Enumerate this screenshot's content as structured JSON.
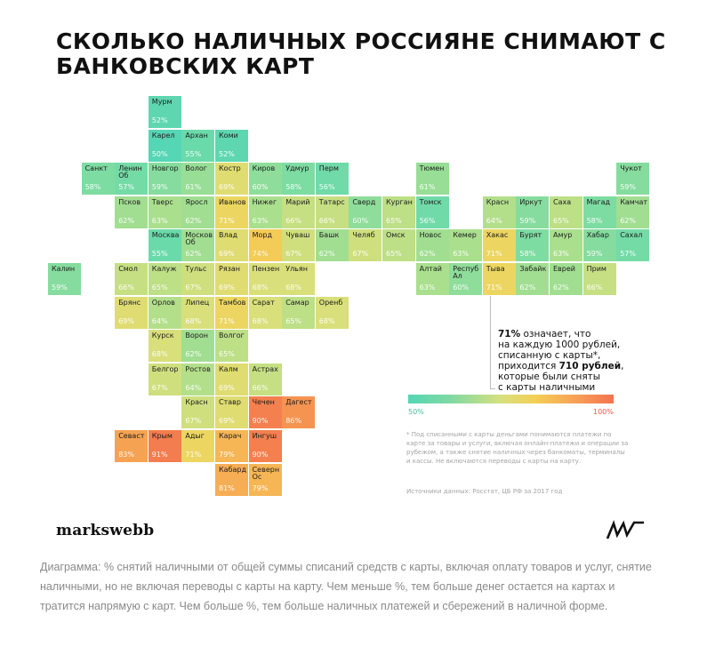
{
  "title": "СКОЛЬКО НАЛИЧНЫХ РОССИЯНЕ СНИМАЮТ С БАНКОВСКИХ КАРТ",
  "colors": {
    "scale_low": "#55d6b4",
    "scale_mid": "#e9d964",
    "scale_high": "#f4734f"
  },
  "chart_data": {
    "type": "heatmap",
    "title": "СКОЛЬКО НАЛИЧНЫХ РОССИЯНЕ СНИМАЮТ С БАНКОВСКИХ КАРТ",
    "scale": {
      "min": 50,
      "max": 100,
      "min_label": "50%",
      "max_label": "100%"
    },
    "regions": [
      {
        "name": "Мурм",
        "pct": 52,
        "col": 3,
        "row": 0
      },
      {
        "name": "Карел",
        "pct": 50,
        "col": 3,
        "row": 1
      },
      {
        "name": "Архан",
        "pct": 55,
        "col": 4,
        "row": 1
      },
      {
        "name": "Коми",
        "pct": 52,
        "col": 5,
        "row": 1
      },
      {
        "name": "Санкт",
        "pct": 58,
        "col": 1,
        "row": 2
      },
      {
        "name": "Ленин\nОб",
        "pct": 57,
        "col": 2,
        "row": 2
      },
      {
        "name": "Новгор",
        "pct": 59,
        "col": 3,
        "row": 2
      },
      {
        "name": "Волог",
        "pct": 61,
        "col": 4,
        "row": 2
      },
      {
        "name": "Костр",
        "pct": 69,
        "col": 5,
        "row": 2
      },
      {
        "name": "Киров",
        "pct": 60,
        "col": 6,
        "row": 2
      },
      {
        "name": "Удмур",
        "pct": 58,
        "col": 7,
        "row": 2
      },
      {
        "name": "Перм",
        "pct": 56,
        "col": 8,
        "row": 2
      },
      {
        "name": "Тюмен",
        "pct": 61,
        "col": 11,
        "row": 2
      },
      {
        "name": "Чукот",
        "pct": 59,
        "col": 17,
        "row": 2
      },
      {
        "name": "Псков",
        "pct": 62,
        "col": 2,
        "row": 3
      },
      {
        "name": "Тверс",
        "pct": 63,
        "col": 3,
        "row": 3
      },
      {
        "name": "Яросл",
        "pct": 62,
        "col": 4,
        "row": 3
      },
      {
        "name": "Иванов",
        "pct": 71,
        "col": 5,
        "row": 3
      },
      {
        "name": "Нижег",
        "pct": 63,
        "col": 6,
        "row": 3
      },
      {
        "name": "Марий",
        "pct": 66,
        "col": 7,
        "row": 3
      },
      {
        "name": "Татарс",
        "pct": 66,
        "col": 8,
        "row": 3
      },
      {
        "name": "Сверд",
        "pct": 60,
        "col": 9,
        "row": 3
      },
      {
        "name": "Курган",
        "pct": 65,
        "col": 10,
        "row": 3
      },
      {
        "name": "Томск",
        "pct": 56,
        "col": 11,
        "row": 3
      },
      {
        "name": "Красн",
        "pct": 64,
        "col": 13,
        "row": 3
      },
      {
        "name": "Иркут",
        "pct": 59,
        "col": 14,
        "row": 3
      },
      {
        "name": "Саха",
        "pct": 65,
        "col": 15,
        "row": 3
      },
      {
        "name": "Магад",
        "pct": 58,
        "col": 16,
        "row": 3
      },
      {
        "name": "Камчат",
        "pct": 62,
        "col": 17,
        "row": 3
      },
      {
        "name": "Москва",
        "pct": 55,
        "col": 3,
        "row": 4
      },
      {
        "name": "Москов\nОб",
        "pct": 62,
        "col": 4,
        "row": 4
      },
      {
        "name": "Влад",
        "pct": 69,
        "col": 5,
        "row": 4
      },
      {
        "name": "Морд",
        "pct": 74,
        "col": 6,
        "row": 4
      },
      {
        "name": "Чуваш",
        "pct": 67,
        "col": 7,
        "row": 4
      },
      {
        "name": "Башк",
        "pct": 62,
        "col": 8,
        "row": 4
      },
      {
        "name": "Челяб",
        "pct": 67,
        "col": 9,
        "row": 4
      },
      {
        "name": "Омск",
        "pct": 65,
        "col": 10,
        "row": 4
      },
      {
        "name": "Новос",
        "pct": 62,
        "col": 11,
        "row": 4
      },
      {
        "name": "Кемер",
        "pct": 63,
        "col": 12,
        "row": 4
      },
      {
        "name": "Хакас",
        "pct": 71,
        "col": 13,
        "row": 4
      },
      {
        "name": "Бурят",
        "pct": 58,
        "col": 14,
        "row": 4
      },
      {
        "name": "Амур",
        "pct": 63,
        "col": 15,
        "row": 4
      },
      {
        "name": "Хабар",
        "pct": 59,
        "col": 16,
        "row": 4
      },
      {
        "name": "Сахал",
        "pct": 57,
        "col": 17,
        "row": 4
      },
      {
        "name": "Калин",
        "pct": 59,
        "col": 0,
        "row": 5
      },
      {
        "name": "Смол",
        "pct": 66,
        "col": 2,
        "row": 5
      },
      {
        "name": "Калуж",
        "pct": 65,
        "col": 3,
        "row": 5
      },
      {
        "name": "Тульс",
        "pct": 67,
        "col": 4,
        "row": 5
      },
      {
        "name": "Рязан",
        "pct": 69,
        "col": 5,
        "row": 5
      },
      {
        "name": "Пензен",
        "pct": 68,
        "col": 6,
        "row": 5
      },
      {
        "name": "Ульян",
        "pct": 68,
        "col": 7,
        "row": 5
      },
      {
        "name": "Алтай",
        "pct": 63,
        "col": 11,
        "row": 5
      },
      {
        "name": "Респуб\nАл",
        "pct": 60,
        "col": 12,
        "row": 5
      },
      {
        "name": "Тыва",
        "pct": 71,
        "col": 13,
        "row": 5
      },
      {
        "name": "Забайк",
        "pct": 62,
        "col": 14,
        "row": 5
      },
      {
        "name": "Еврей",
        "pct": 62,
        "col": 15,
        "row": 5
      },
      {
        "name": "Прим",
        "pct": 66,
        "col": 16,
        "row": 5
      },
      {
        "name": "Брянс",
        "pct": 69,
        "col": 2,
        "row": 6
      },
      {
        "name": "Орлов",
        "pct": 64,
        "col": 3,
        "row": 6
      },
      {
        "name": "Липец",
        "pct": 68,
        "col": 4,
        "row": 6
      },
      {
        "name": "Тамбов",
        "pct": 71,
        "col": 5,
        "row": 6
      },
      {
        "name": "Сарат",
        "pct": 68,
        "col": 6,
        "row": 6
      },
      {
        "name": "Самар",
        "pct": 65,
        "col": 7,
        "row": 6
      },
      {
        "name": "Оренб",
        "pct": 68,
        "col": 8,
        "row": 6
      },
      {
        "name": "Курск",
        "pct": 68,
        "col": 3,
        "row": 7
      },
      {
        "name": "Ворон",
        "pct": 62,
        "col": 4,
        "row": 7
      },
      {
        "name": "Волгог",
        "pct": 65,
        "col": 5,
        "row": 7
      },
      {
        "name": "Белгор",
        "pct": 67,
        "col": 3,
        "row": 8
      },
      {
        "name": "Ростов",
        "pct": 64,
        "col": 4,
        "row": 8
      },
      {
        "name": "Калм",
        "pct": 69,
        "col": 5,
        "row": 8
      },
      {
        "name": "Астрах",
        "pct": 66,
        "col": 6,
        "row": 8
      },
      {
        "name": "Красн",
        "pct": 67,
        "col": 4,
        "row": 9
      },
      {
        "name": "Ставр",
        "pct": 69,
        "col": 5,
        "row": 9
      },
      {
        "name": "Чечен",
        "pct": 90,
        "col": 6,
        "row": 9
      },
      {
        "name": "Дагест",
        "pct": 86,
        "col": 7,
        "row": 9
      },
      {
        "name": "Севаст",
        "pct": 83,
        "col": 2,
        "row": 10
      },
      {
        "name": "Крым",
        "pct": 91,
        "col": 3,
        "row": 10
      },
      {
        "name": "Адыг",
        "pct": 71,
        "col": 4,
        "row": 10
      },
      {
        "name": "Карач",
        "pct": 79,
        "col": 5,
        "row": 10
      },
      {
        "name": "Ингуш",
        "pct": 90,
        "col": 6,
        "row": 10
      },
      {
        "name": "Кабард",
        "pct": 81,
        "col": 5,
        "row": 11
      },
      {
        "name": "Северн\nОс",
        "pct": 79,
        "col": 6,
        "row": 11
      }
    ]
  },
  "annotation": {
    "pct": "71%",
    "line1": " означает, что",
    "line2": "на каждую 1000 рублей,",
    "line3": "списанную с карты*,",
    "line4a": "приходится ",
    "line4b": "710 рублей",
    "line4c": ",",
    "line5": "которые были сняты",
    "line6": "с карты наличными"
  },
  "legend": {
    "min_label": "50%",
    "max_label": "100%"
  },
  "footnote": "* Под списанными с карты деньгами понимаются платежи по карте за товары и услуги, включая онлайн-платежи и операции за рубежом, а также снятие наличных через банкоматы, терминалы и кассы. Не включаются переводы с карты на карту.",
  "source": "Источники данных: Росстат, ЦБ РФ за 2017 год",
  "brand": "markswebb",
  "logo_text": "MW",
  "caption": "Диаграмма: % снятий наличными от общей суммы списаний средств с карты, включая оплату товаров и услуг, снятие наличными, но не включая переводы с карты на карту. Чем меньше %, тем больше денег остается на картах и тратится напрямую с карт. Чем больше %, тем больше наличных платежей и сбережений в наличной форме."
}
